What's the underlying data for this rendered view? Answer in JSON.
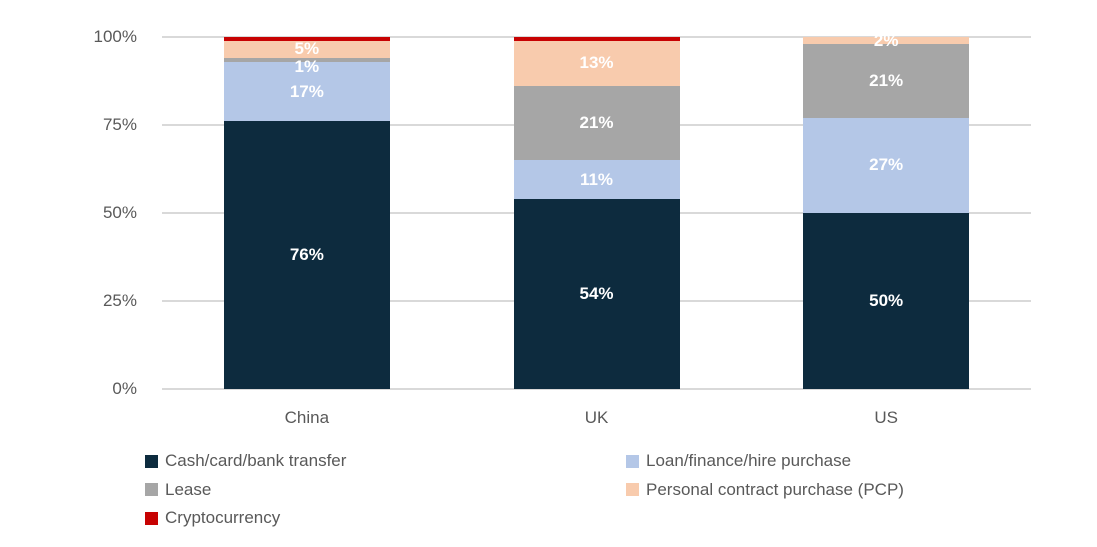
{
  "chart_data": {
    "type": "bar",
    "stacked": true,
    "categories": [
      "China",
      "UK",
      "US"
    ],
    "y_axis": {
      "tick_labels": [
        "0%",
        "25%",
        "50%",
        "75%",
        "100%"
      ],
      "tick_values": [
        0,
        25,
        50,
        75,
        100
      ],
      "min": 0,
      "max": 100,
      "grid": true
    },
    "series": [
      {
        "name": "Cash/card/bank transfer",
        "color": "#0d2b3e",
        "values": [
          76,
          54,
          50
        ],
        "data_labels": [
          "76%",
          "54%",
          "50%"
        ]
      },
      {
        "name": "Loan/finance/hire purchase",
        "color": "#b4c7e7",
        "values": [
          17,
          11,
          27
        ],
        "data_labels": [
          "17%",
          "11%",
          "27%"
        ]
      },
      {
        "name": "Lease",
        "color": "#a6a6a6",
        "values": [
          1,
          21,
          21
        ],
        "data_labels": [
          "1%",
          "21%",
          "21%"
        ]
      },
      {
        "name": "Personal contract purchase (PCP)",
        "color": "#f8cbad",
        "values": [
          5,
          13,
          2
        ],
        "data_labels": [
          "5%",
          "13%",
          "2%"
        ]
      },
      {
        "name": "Cryptocurrency",
        "color": "#c70202",
        "values": [
          1,
          1,
          0
        ],
        "data_labels": null
      }
    ],
    "legend": {
      "position": "bottom",
      "columns": 2
    },
    "style": {
      "background": "#ffffff",
      "gridline_color": "#d9d9d9",
      "axis_text_color": "#595959",
      "data_label_color": "#ffffff"
    }
  }
}
